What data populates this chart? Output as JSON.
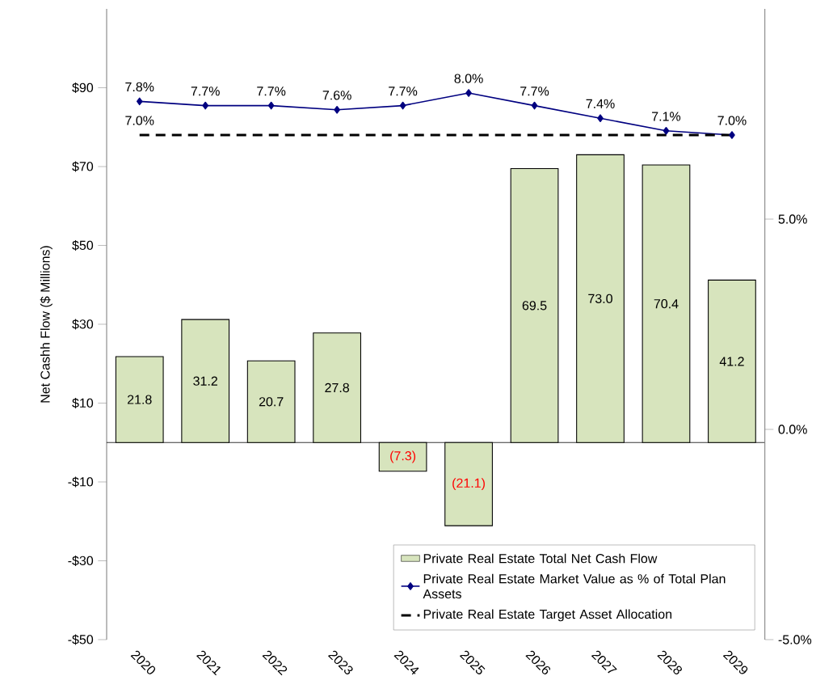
{
  "chart_data": {
    "type": "bar",
    "categories": [
      "2020",
      "2021",
      "2022",
      "2023",
      "2024",
      "2025",
      "2026",
      "2027",
      "2028",
      "2029"
    ],
    "ylabel": "Net Cashh Flow ($ Millions)",
    "ylim": [
      -50,
      110
    ],
    "yticks": [
      {
        "value": -50,
        "label": "-$50"
      },
      {
        "value": -30,
        "label": "-$30"
      },
      {
        "value": -10,
        "label": "-$10"
      },
      {
        "value": 10,
        "label": "$10"
      },
      {
        "value": 30,
        "label": "$30"
      },
      {
        "value": 50,
        "label": "$50"
      },
      {
        "value": 70,
        "label": "$70"
      },
      {
        "value": 90,
        "label": "$90"
      }
    ],
    "y2lim": [
      -5,
      10
    ],
    "y2ticks": [
      {
        "value": -5,
        "label": "-5.0%"
      },
      {
        "value": 0,
        "label": "0.0%"
      },
      {
        "value": 5,
        "label": "5.0%"
      }
    ],
    "legend": "bottom right",
    "series": [
      {
        "name": "Private Real Estate Total Net Cash Flow",
        "color": "#d7e4bd",
        "values": [
          21.8,
          31.2,
          20.7,
          27.8,
          -7.3,
          -21.1,
          69.5,
          73.0,
          70.4,
          41.2
        ],
        "value_labels": [
          "21.8",
          "31.2",
          "20.7",
          "27.8",
          "(7.3)",
          "(21.1)",
          "69.5",
          "73.0",
          "70.4",
          "41.2"
        ]
      },
      {
        "name": "Private Real Estate Market Value as % of Total Plan Assets",
        "type": "line",
        "axis": "y2",
        "color": "#000080",
        "marker": "diamond",
        "values": [
          7.8,
          7.7,
          7.7,
          7.6,
          7.7,
          8.0,
          7.7,
          7.4,
          7.1,
          7.0
        ],
        "value_labels": [
          "7.8%",
          "7.7%",
          "7.7%",
          "7.6%",
          "7.7%",
          "8.0%",
          "7.7%",
          "7.4%",
          "7.1%",
          "7.0%"
        ]
      },
      {
        "name": "Private Real Estate Target Asset Allocation",
        "type": "line",
        "axis": "y2",
        "color": "#000000",
        "line_style": "dashed",
        "marker": "none",
        "values": [
          7.0,
          7.0,
          7.0,
          7.0,
          7.0,
          7.0,
          7.0,
          7.0,
          7.0,
          7.0
        ]
      }
    ],
    "annotations": [
      "7.0%"
    ]
  }
}
